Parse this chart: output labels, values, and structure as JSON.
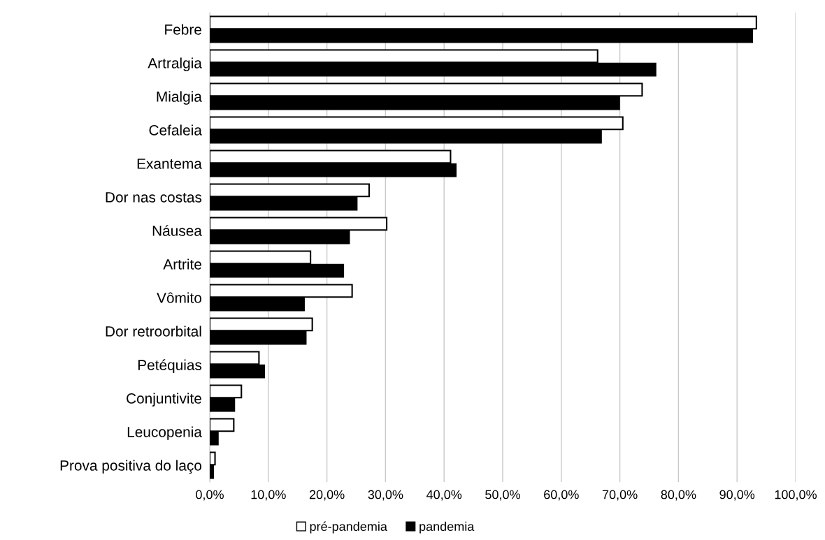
{
  "chart_data": {
    "type": "bar",
    "orientation": "horizontal",
    "categories": [
      "Febre",
      "Artralgia",
      "Mialgia",
      "Cefaleia",
      "Exantema",
      "Dor nas costas",
      "Náusea",
      "Artrite",
      "Vômito",
      "Dor retroorbital",
      "Petéquias",
      "Conjuntivite",
      "Leucopenia",
      "Prova positiva do laço"
    ],
    "series": [
      {
        "name": "pré-pandemia",
        "color": "#ffffff",
        "values": [
          93.3,
          66.2,
          73.8,
          70.5,
          41.1,
          27.2,
          30.2,
          17.2,
          24.3,
          17.5,
          8.4,
          5.4,
          4.1,
          0.9
        ]
      },
      {
        "name": "pandemia",
        "color": "#000000",
        "values": [
          92.6,
          76.1,
          69.9,
          66.8,
          42.0,
          25.1,
          23.8,
          22.8,
          16.1,
          16.4,
          9.3,
          4.2,
          1.4,
          0.6
        ]
      }
    ],
    "xlim": [
      0,
      100
    ],
    "xticks": [
      {
        "value": 0,
        "label": "0,0%"
      },
      {
        "value": 10,
        "label": "10,0%"
      },
      {
        "value": 20,
        "label": "20,0%"
      },
      {
        "value": 30,
        "label": "30,0%"
      },
      {
        "value": 40,
        "label": "40,0%"
      },
      {
        "value": 50,
        "label": "50,0%"
      },
      {
        "value": 60,
        "label": "60,0%"
      },
      {
        "value": 70,
        "label": "70,0%"
      },
      {
        "value": 80,
        "label": "80,0%"
      },
      {
        "value": 90,
        "label": "90,0%"
      },
      {
        "value": 100,
        "label": "100,0%"
      }
    ],
    "grid": "x",
    "legend": "bottom"
  }
}
